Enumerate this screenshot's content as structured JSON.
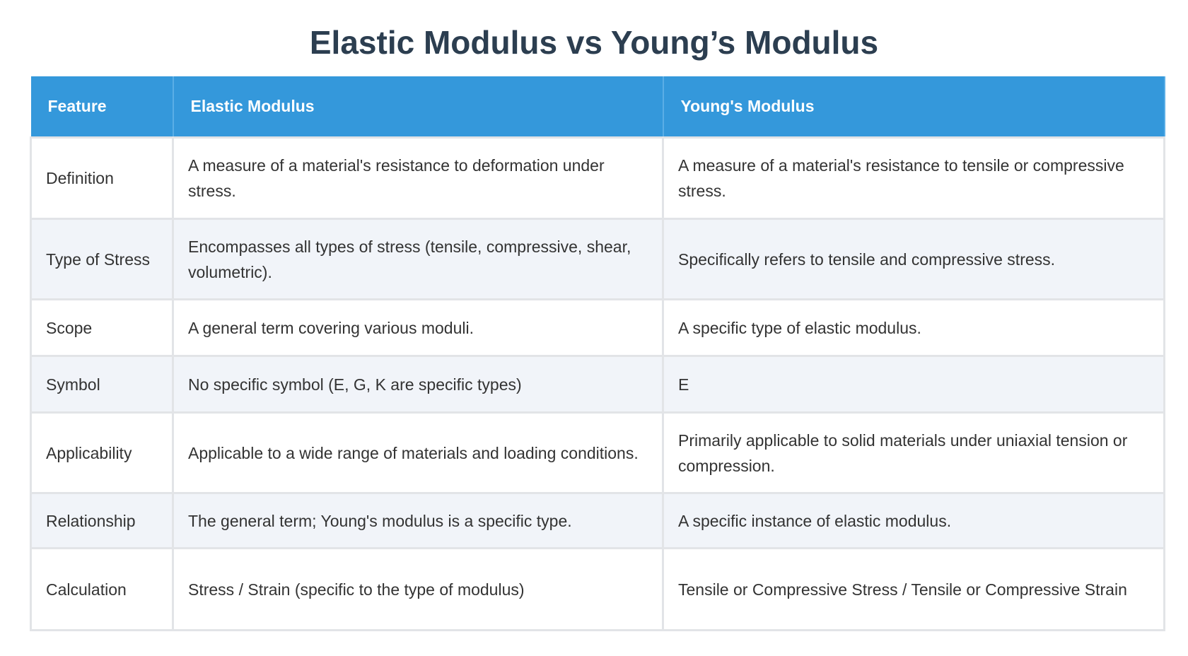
{
  "title": "Elastic Modulus vs Young’s Modulus",
  "colors": {
    "header_bg": "#3498db",
    "title": "#2c3e50",
    "alt_row": "#f1f4f9"
  },
  "headers": [
    "Feature",
    "Elastic Modulus",
    "Young's Modulus"
  ],
  "rows": [
    [
      "Definition",
      "A measure of a material's resistance to deformation under stress.",
      "A measure of a material's resistance to tensile or compressive stress."
    ],
    [
      "Type of Stress",
      "Encompasses all types of stress (tensile, compressive, shear, volumetric).",
      "Specifically refers to tensile and compressive stress."
    ],
    [
      "Scope",
      "A general term covering various moduli.",
      "A specific type of elastic modulus."
    ],
    [
      "Symbol",
      "No specific symbol (E, G, K are specific types)",
      "E"
    ],
    [
      "Applicability",
      "Applicable to a wide range of materials and loading conditions.",
      "Primarily applicable to solid materials under uniaxial tension or compression."
    ],
    [
      "Relationship",
      "The general term; Young's modulus is a specific type.",
      "A specific instance of elastic modulus."
    ],
    [
      "Calculation",
      "Stress / Strain (specific to the type of modulus)",
      "Tensile or Compressive Stress / Tensile or Compressive Strain"
    ]
  ]
}
